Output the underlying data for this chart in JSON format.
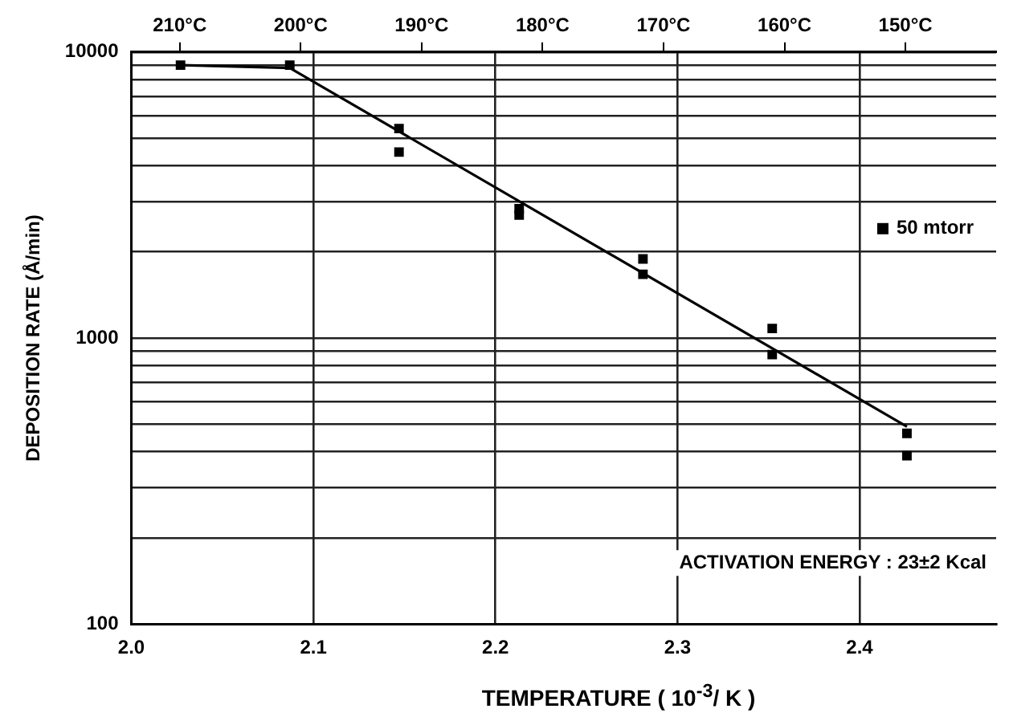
{
  "chart_data": {
    "type": "scatter",
    "xlabel": "TEMPERATURE ( 10$^{-3}$/ K )",
    "ylabel": "DEPOSITION RATE (Å/min)",
    "xlim": [
      2.0,
      2.475
    ],
    "xticks": [
      {
        "value": 2.0,
        "label": "2.0"
      },
      {
        "value": 2.1,
        "label": "2.1"
      },
      {
        "value": 2.2,
        "label": "2.2"
      },
      {
        "value": 2.3,
        "label": "2.3"
      },
      {
        "value": 2.4,
        "label": "2.4"
      }
    ],
    "x2lim": [
      214,
      142.5
    ],
    "x2ticks": [
      {
        "value": 210,
        "label": "210°C"
      },
      {
        "value": 200,
        "label": "200°C"
      },
      {
        "value": 190,
        "label": "190°C"
      },
      {
        "value": 180,
        "label": "180°C"
      },
      {
        "value": 170,
        "label": "170°C"
      },
      {
        "value": 160,
        "label": "160°C"
      },
      {
        "value": 150,
        "label": "150°C"
      }
    ],
    "ylim": [
      100,
      10000
    ],
    "log": "y",
    "yticks": [
      100,
      {
        "value": 200,
        "label": null
      },
      {
        "value": 300,
        "label": null
      },
      {
        "value": 400,
        "label": null
      },
      {
        "value": 500,
        "label": null
      },
      {
        "value": 600,
        "label": null
      },
      {
        "value": 700,
        "label": null
      },
      {
        "value": 800,
        "label": null
      },
      {
        "value": 900,
        "label": null
      },
      1000,
      {
        "value": 2000,
        "label": null
      },
      {
        "value": 3000,
        "label": null
      },
      {
        "value": 4000,
        "label": null
      },
      {
        "value": 5000,
        "label": null
      },
      {
        "value": 6000,
        "label": null
      },
      {
        "value": 7000,
        "label": null
      },
      {
        "value": 8000,
        "label": null
      },
      {
        "value": 9000,
        "label": null
      },
      10000
    ],
    "grid": true,
    "legend": "top right",
    "marker": "square",
    "series": [
      {
        "name": "50 mtorr",
        "color": "#000000",
        "x": [
          2.027,
          2.087,
          2.147,
          2.147,
          2.213,
          2.213,
          2.281,
          2.281,
          2.352,
          2.352,
          2.426,
          2.426
        ],
        "values": [
          9000,
          9000,
          5400,
          4470,
          2830,
          2690,
          1890,
          1670,
          1080,
          875,
          464,
          388
        ]
      },
      {
        "type": "line",
        "color": "#000000",
        "marker": "none",
        "x": [
          2.027,
          2.087,
          2.426
        ],
        "values": [
          9000,
          8800,
          490
        ]
      }
    ],
    "annotations": [
      "ACTIVATION ENERGY : 23±2 Kcal"
    ]
  }
}
